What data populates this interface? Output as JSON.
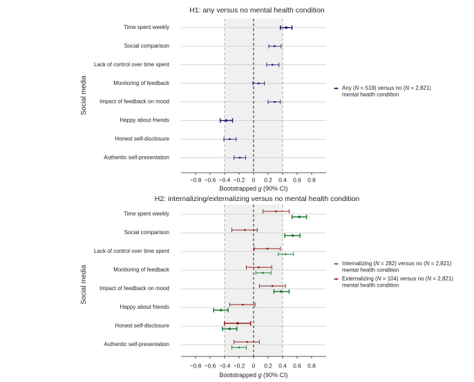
{
  "chart_data": [
    {
      "type": "forest",
      "title": "H1: any versus no mental health condition",
      "ylabel": "Social media",
      "xlabel_parts": [
        "Bootstrapped ",
        "g",
        " (90% CI)"
      ],
      "xlim": [
        -1.0,
        1.0
      ],
      "xticks": [
        -0.8,
        -0.6,
        -0.4,
        -0.2,
        0,
        0.2,
        0.4,
        0.6,
        0.8
      ],
      "xtick_labels": [
        "−0.8",
        "−0.6",
        "−0.4",
        "−0.2",
        "0",
        "0.2",
        "0.4",
        "0.6",
        "0.8"
      ],
      "shaded_region": [
        -0.4,
        0.4
      ],
      "categories": [
        "Time spent weekly",
        "Social comparison",
        "Lack of control over time spent",
        "Monitoring of feedback",
        "Impact of feedback on mood",
        "Happy about friends",
        "Honest self-disclosure",
        "Authentic self-presentation"
      ],
      "series": [
        {
          "legend_lines": [
            [
              {
                "t": "Any ("
              },
              {
                "t": "N",
                "i": true
              },
              {
                "t": " = 519) versus no ("
              },
              {
                "t": "N",
                "i": true
              },
              {
                "t": " = 2,821)"
              }
            ],
            [
              {
                "t": "mental health condition"
              }
            ]
          ],
          "color": "#1f1a6b",
          "points": [
            {
              "est": 0.45,
              "lo": 0.37,
              "hi": 0.53,
              "bold": true
            },
            {
              "est": 0.29,
              "lo": 0.21,
              "hi": 0.38
            },
            {
              "est": 0.26,
              "lo": 0.18,
              "hi": 0.35
            },
            {
              "est": 0.07,
              "lo": -0.01,
              "hi": 0.15
            },
            {
              "est": 0.29,
              "lo": 0.2,
              "hi": 0.37
            },
            {
              "est": -0.38,
              "lo": -0.46,
              "hi": -0.29,
              "bold": true
            },
            {
              "est": -0.33,
              "lo": -0.41,
              "hi": -0.24
            },
            {
              "est": -0.19,
              "lo": -0.27,
              "hi": -0.11
            }
          ]
        }
      ]
    },
    {
      "type": "forest",
      "title": "H2: internalizing/externalizing versus no mental health condition",
      "ylabel": "Social media",
      "xlabel_parts": [
        "Bootstrapped ",
        "g",
        " (90% CI)"
      ],
      "xlim": [
        -1.0,
        1.0
      ],
      "xticks": [
        -0.8,
        -0.6,
        -0.4,
        -0.2,
        0,
        0.2,
        0.4,
        0.6,
        0.8
      ],
      "xtick_labels": [
        "−0.8",
        "−0.6",
        "−0.4",
        "−0.2",
        "0",
        "0.2",
        "0.4",
        "0.6",
        "0.8"
      ],
      "shaded_region": [
        -0.4,
        0.4
      ],
      "categories": [
        "Time spent weekly",
        "Social comparison",
        "Lack of control over time spent",
        "Monitoring of feedback",
        "Impact of feedback on mood",
        "Happy about friends",
        "Honest self-disclosure",
        "Authentic self-presentation"
      ],
      "series": [
        {
          "legend_lines": [
            [
              {
                "t": "Internalizing ("
              },
              {
                "t": "N",
                "i": true
              },
              {
                "t": " = 282) versus no ("
              },
              {
                "t": "N",
                "i": true
              },
              {
                "t": " = 2,821)"
              }
            ],
            [
              {
                "t": "mental health condition"
              }
            ]
          ],
          "color": "#1e7a2e",
          "offset": 1,
          "points": [
            {
              "est": 0.63,
              "lo": 0.53,
              "hi": 0.73,
              "bold": true
            },
            {
              "est": 0.54,
              "lo": 0.43,
              "hi": 0.64,
              "bold": true
            },
            {
              "est": 0.44,
              "lo": 0.34,
              "hi": 0.55
            },
            {
              "est": 0.13,
              "lo": 0.03,
              "hi": 0.24
            },
            {
              "est": 0.38,
              "lo": 0.28,
              "hi": 0.49,
              "bold": true
            },
            {
              "est": -0.45,
              "lo": -0.55,
              "hi": -0.35,
              "bold": true
            },
            {
              "est": -0.33,
              "lo": -0.43,
              "hi": -0.23,
              "bold": true
            },
            {
              "est": -0.2,
              "lo": -0.3,
              "hi": -0.1
            }
          ]
        },
        {
          "legend_lines": [
            [
              {
                "t": "Externalizing ("
              },
              {
                "t": "N",
                "i": true
              },
              {
                "t": " = 104) versus no ("
              },
              {
                "t": "N",
                "i": true
              },
              {
                "t": " = 2,821)"
              }
            ],
            [
              {
                "t": "mental health condition"
              }
            ]
          ],
          "color": "#8b1a1a",
          "offset": -1,
          "points": [
            {
              "est": 0.31,
              "lo": 0.13,
              "hi": 0.49
            },
            {
              "est": -0.12,
              "lo": -0.3,
              "hi": 0.05
            },
            {
              "est": 0.19,
              "lo": 0.01,
              "hi": 0.37
            },
            {
              "est": 0.07,
              "lo": -0.1,
              "hi": 0.25
            },
            {
              "est": 0.26,
              "lo": 0.08,
              "hi": 0.44
            },
            {
              "est": -0.15,
              "lo": -0.33,
              "hi": 0.02
            },
            {
              "est": -0.22,
              "lo": -0.4,
              "hi": -0.04,
              "bold": true
            },
            {
              "est": -0.09,
              "lo": -0.27,
              "hi": 0.08
            }
          ]
        }
      ]
    }
  ]
}
